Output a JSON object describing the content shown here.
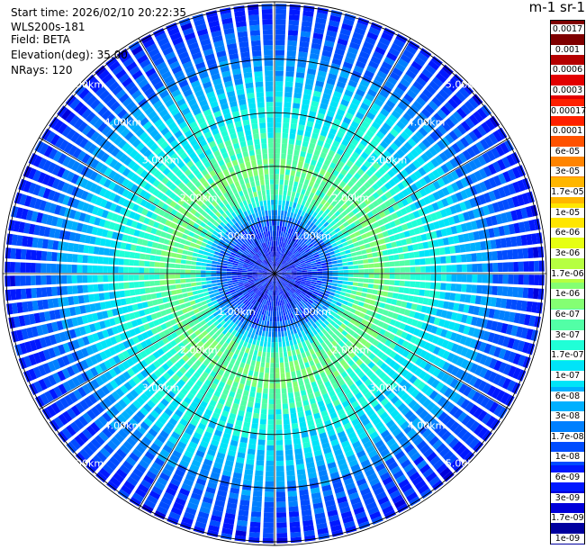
{
  "header": {
    "start_time": "Start time: 2026/02/10 20:22:35",
    "instrument": "WLS200s-181",
    "field": "Field: BETA",
    "elevation": "Elevation(deg): 35.00",
    "nrays": "NRays: 120"
  },
  "chart_data": {
    "type": "heatmap",
    "projection": "polar-ppi",
    "n_rays": 120,
    "range_rings_km": [
      1,
      2,
      3,
      4,
      5
    ],
    "range_ring_labels": [
      "1.00km",
      "2.00km",
      "3.00km",
      "4.00km",
      "5.00km"
    ],
    "range_max_km": 5.0,
    "radial_profile_log10_beta": [
      {
        "range_km": 0.0,
        "value": -8.2
      },
      {
        "range_km": 0.5,
        "value": -8.2
      },
      {
        "range_km": 1.0,
        "value": -7.8
      },
      {
        "range_km": 1.5,
        "value": -6.4
      },
      {
        "range_km": 2.0,
        "value": -6.2
      },
      {
        "range_km": 2.5,
        "value": -6.6
      },
      {
        "range_km": 3.0,
        "value": -6.9
      },
      {
        "range_km": 3.5,
        "value": -7.1
      },
      {
        "range_km": 4.0,
        "value": -7.6
      },
      {
        "range_km": 4.5,
        "value": -7.9
      },
      {
        "range_km": 5.0,
        "value": -8.2
      }
    ],
    "colorbar": {
      "title": "m-1 sr-1",
      "tick_labels": [
        "0.0017",
        "0.001",
        "0.0006",
        "0.0003",
        "0.00017",
        "0.0001",
        "6e-05",
        "3e-05",
        "1.7e-05",
        "1e-05",
        "6e-06",
        "3e-06",
        "1.7e-06",
        "1e-06",
        "6e-07",
        "3e-07",
        "1.7e-07",
        "1e-07",
        "6e-08",
        "3e-08",
        "1.7e-08",
        "1e-08",
        "6e-09",
        "3e-09",
        "1.7e-09",
        "1e-09"
      ],
      "log_range": [
        -9,
        -2.77
      ],
      "colors": [
        "#7f0000",
        "#b50000",
        "#e30000",
        "#ff2000",
        "#ff5200",
        "#ff8400",
        "#ffb600",
        "#ffe600",
        "#e6ff12",
        "#b6ff41",
        "#84ff73",
        "#52ffa6",
        "#20ffd7",
        "#00e4f8",
        "#00b0ff",
        "#0080ff",
        "#004cff",
        "#0018ff",
        "#0000da",
        "#00009f"
      ]
    }
  }
}
